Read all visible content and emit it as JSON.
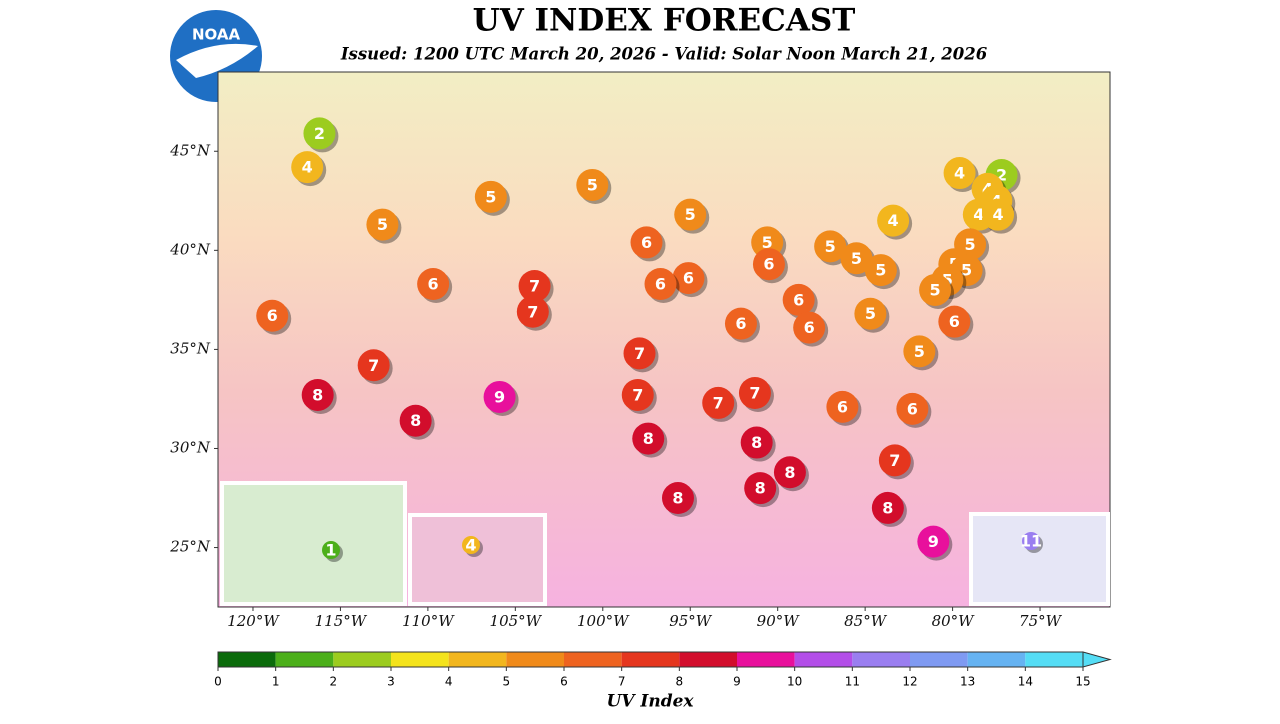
{
  "chart_data": {
    "type": "map",
    "title": "UV INDEX FORECAST",
    "subtitle": "Issued: 1200 UTC March 20, 2026 - Valid: Solar Noon March 21, 2026",
    "logo": "NOAA",
    "xlim": [
      -122,
      -71
    ],
    "ylim": [
      22,
      49
    ],
    "xticks": [
      {
        "value": -120,
        "label": "120°W"
      },
      {
        "value": -115,
        "label": "115°W"
      },
      {
        "value": -110,
        "label": "110°W"
      },
      {
        "value": -105,
        "label": "105°W"
      },
      {
        "value": -100,
        "label": "100°W"
      },
      {
        "value": -95,
        "label": "95°W"
      },
      {
        "value": -90,
        "label": "90°W"
      },
      {
        "value": -85,
        "label": "85°W"
      },
      {
        "value": -80,
        "label": "80°W"
      },
      {
        "value": -75,
        "label": "75°W"
      }
    ],
    "yticks": [
      {
        "value": 25,
        "label": "25°N"
      },
      {
        "value": 30,
        "label": "30°N"
      },
      {
        "value": 35,
        "label": "35°N"
      },
      {
        "value": 40,
        "label": "40°N"
      },
      {
        "value": 45,
        "label": "45°N"
      }
    ],
    "markers": [
      {
        "lon": -116.2,
        "lat": 45.9,
        "value": 2
      },
      {
        "lon": -116.9,
        "lat": 44.2,
        "value": 4
      },
      {
        "lon": -112.6,
        "lat": 41.3,
        "value": 5
      },
      {
        "lon": -106.4,
        "lat": 42.7,
        "value": 5
      },
      {
        "lon": -100.6,
        "lat": 43.3,
        "value": 5
      },
      {
        "lon": -95.0,
        "lat": 41.8,
        "value": 5
      },
      {
        "lon": -97.5,
        "lat": 40.4,
        "value": 6
      },
      {
        "lon": -90.6,
        "lat": 40.4,
        "value": 5
      },
      {
        "lon": -90.5,
        "lat": 39.3,
        "value": 6
      },
      {
        "lon": -87.0,
        "lat": 40.2,
        "value": 5
      },
      {
        "lon": -85.5,
        "lat": 39.6,
        "value": 5
      },
      {
        "lon": -84.1,
        "lat": 39.0,
        "value": 5
      },
      {
        "lon": -83.4,
        "lat": 41.5,
        "value": 4
      },
      {
        "lon": -79.6,
        "lat": 43.9,
        "value": 4
      },
      {
        "lon": -77.2,
        "lat": 43.8,
        "value": 2
      },
      {
        "lon": -78.0,
        "lat": 43.1,
        "value": 4
      },
      {
        "lon": -77.5,
        "lat": 42.5,
        "value": 4
      },
      {
        "lon": -78.5,
        "lat": 41.8,
        "value": 4
      },
      {
        "lon": -77.4,
        "lat": 41.8,
        "value": 4
      },
      {
        "lon": -79.0,
        "lat": 40.3,
        "value": 5
      },
      {
        "lon": -79.9,
        "lat": 39.3,
        "value": 5
      },
      {
        "lon": -79.2,
        "lat": 39.0,
        "value": 5
      },
      {
        "lon": -80.3,
        "lat": 38.5,
        "value": 5
      },
      {
        "lon": -81.0,
        "lat": 38.0,
        "value": 5
      },
      {
        "lon": -79.9,
        "lat": 36.4,
        "value": 6
      },
      {
        "lon": -84.7,
        "lat": 36.8,
        "value": 5
      },
      {
        "lon": -81.9,
        "lat": 34.9,
        "value": 5
      },
      {
        "lon": -88.8,
        "lat": 37.5,
        "value": 6
      },
      {
        "lon": -88.2,
        "lat": 36.1,
        "value": 6
      },
      {
        "lon": -92.1,
        "lat": 36.3,
        "value": 6
      },
      {
        "lon": -95.1,
        "lat": 38.6,
        "value": 6
      },
      {
        "lon": -96.7,
        "lat": 38.3,
        "value": 6
      },
      {
        "lon": -103.9,
        "lat": 38.2,
        "value": 7
      },
      {
        "lon": -104.0,
        "lat": 36.9,
        "value": 7
      },
      {
        "lon": -109.7,
        "lat": 38.3,
        "value": 6
      },
      {
        "lon": -118.9,
        "lat": 36.7,
        "value": 6
      },
      {
        "lon": -113.1,
        "lat": 34.2,
        "value": 7
      },
      {
        "lon": -116.3,
        "lat": 32.7,
        "value": 8
      },
      {
        "lon": -110.7,
        "lat": 31.4,
        "value": 8
      },
      {
        "lon": -105.9,
        "lat": 32.6,
        "value": 9
      },
      {
        "lon": -97.9,
        "lat": 34.8,
        "value": 7
      },
      {
        "lon": -98.0,
        "lat": 32.7,
        "value": 7
      },
      {
        "lon": -97.4,
        "lat": 30.5,
        "value": 8
      },
      {
        "lon": -93.4,
        "lat": 32.3,
        "value": 7
      },
      {
        "lon": -91.3,
        "lat": 32.8,
        "value": 7
      },
      {
        "lon": -91.2,
        "lat": 30.3,
        "value": 8
      },
      {
        "lon": -89.3,
        "lat": 28.8,
        "value": 8
      },
      {
        "lon": -91.0,
        "lat": 28.0,
        "value": 8
      },
      {
        "lon": -95.7,
        "lat": 27.5,
        "value": 8
      },
      {
        "lon": -86.3,
        "lat": 32.1,
        "value": 6
      },
      {
        "lon": -82.3,
        "lat": 32.0,
        "value": 6
      },
      {
        "lon": -83.3,
        "lat": 29.4,
        "value": 7
      },
      {
        "lon": -83.7,
        "lat": 27.0,
        "value": 8
      },
      {
        "lon": -81.1,
        "lat": 25.3,
        "value": 9
      }
    ],
    "insets": [
      {
        "value": 1
      },
      {
        "value": 4
      },
      {
        "value": 11
      }
    ],
    "colorbar": {
      "label": "UV Index",
      "ticks": [
        0,
        1,
        2,
        3,
        4,
        5,
        6,
        7,
        8,
        9,
        10,
        11,
        12,
        13,
        14,
        15
      ],
      "colors": [
        "#0b6b0b",
        "#4caf1a",
        "#9ccc1f",
        "#f4e31c",
        "#f2b61e",
        "#f08a1a",
        "#ee6320",
        "#e5361e",
        "#d20d2c",
        "#e8109c",
        "#b34ee8",
        "#9a7ef0",
        "#7f9af2",
        "#66b3f2",
        "#55ddf5"
      ]
    }
  }
}
